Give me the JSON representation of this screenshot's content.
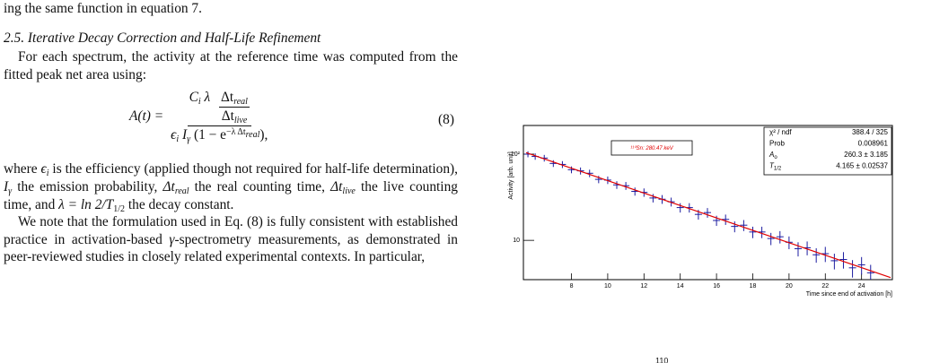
{
  "text": {
    "line0": "ing the same function in equation 7.",
    "heading": "2.5. Iterative Decay Correction and Half-Life Refinement",
    "para1": "For each spectrum, the activity at the reference time was computed from the fitted peak net area using:",
    "equation": {
      "lhs": "A(t) =",
      "num": [
        "C",
        "i",
        "λ"
      ],
      "frac_top": [
        "Δt",
        "real"
      ],
      "frac_bottom": [
        "Δt",
        "live"
      ],
      "den": [
        "ϵ",
        "i",
        "I",
        "γ",
        "(1 − e",
        "−λ Δt",
        "real",
        "),"
      ],
      "number": "(8)"
    },
    "para2": [
      "where ",
      "ϵ",
      "i",
      " is the efficiency (applied though not required for half-life determination), ",
      "I",
      "γ",
      " the emission probability, ",
      "Δt",
      "real",
      " the real counting time, ",
      "Δt",
      "live",
      " the live counting time, and ",
      "λ = ln 2/",
      "T",
      "1/2",
      " the decay constant."
    ],
    "para3": [
      "We note that the formulation used in Eq. (8) is fully consistent with established practice in activation-based ",
      "γ",
      "-spectrometry measurements, as demonstrated in peer-reviewed studies in closely related experimental contexts. In particular,"
    ],
    "caption_fragment": "110"
  },
  "chart_data": {
    "type": "scatter",
    "y_label": "Activity [arb. unit]",
    "x_label": "Time since end of activation [h]",
    "legend_text": "¹¹⁰Sn: 280.47 keV",
    "stats": [
      {
        "label": "χ² / ndf",
        "value": "388.4 / 325"
      },
      {
        "label": "Prob",
        "value": "0.008961"
      },
      {
        "label": "A",
        "sub": "o",
        "value": "260.3 ± 3.185"
      },
      {
        "label": "T",
        "sub": "1/2",
        "value": "4.165 ± 0.02537"
      }
    ],
    "xlim": [
      5.35,
      25.7
    ],
    "xticks": [
      8,
      10,
      12,
      14,
      16,
      18,
      20,
      22,
      24
    ],
    "ylim": [
      3.5,
      215
    ],
    "log_y": true,
    "yticks": [
      {
        "value": 10,
        "label": "10"
      },
      {
        "value": 100,
        "label": "10²"
      }
    ],
    "series": [
      {
        "mode": "points",
        "color": "#1c1ca0",
        "x": [
          5.6,
          6.0,
          6.5,
          7.0,
          7.5,
          8.0,
          8.5,
          9.0,
          9.5,
          10,
          10.5,
          11,
          11.5,
          12,
          12.5,
          13,
          13.5,
          14,
          14.5,
          15,
          15.5,
          16,
          16.5,
          17,
          17.5,
          18,
          18.5,
          19,
          19.5,
          20,
          20.5,
          21,
          21.5,
          22,
          22.5,
          23,
          23.5,
          24,
          24.5
        ],
        "values": [
          100,
          94,
          90,
          78,
          76,
          66,
          64,
          60,
          51,
          50,
          44,
          43,
          37,
          36,
          31,
          30,
          28,
          24,
          24,
          20,
          21,
          17,
          17.5,
          14.5,
          15,
          12.5,
          12.5,
          10.5,
          11,
          9.5,
          8,
          8.2,
          6.8,
          7,
          5.8,
          6,
          4.8,
          5.2,
          4.2
        ],
        "errors": [
          8,
          8,
          8,
          7,
          7,
          6,
          6,
          6,
          5,
          5,
          4.5,
          4.5,
          4,
          4,
          3.5,
          3.5,
          3.3,
          3,
          3,
          2.6,
          2.7,
          2.3,
          2.4,
          2.1,
          2.2,
          1.9,
          1.9,
          1.7,
          1.8,
          1.6,
          1.5,
          1.5,
          1.3,
          1.4,
          1.2,
          1.3,
          1.1,
          1.2,
          1.0
        ]
      },
      {
        "mode": "line",
        "color": "#e00000",
        "x": [
          5.5,
          25.6
        ],
        "values": [
          104,
          3.7
        ]
      }
    ]
  }
}
